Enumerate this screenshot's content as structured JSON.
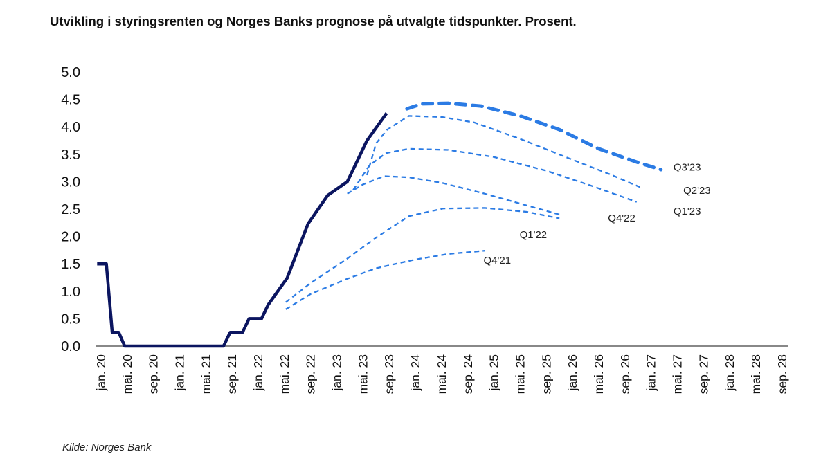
{
  "chart_data": {
    "type": "line",
    "title": "Utvikling i styringsrenten og Norges Banks prognose på utvalgte tidspunkter. Prosent.",
    "source": "Kilde: Norges Bank",
    "xlabel": "",
    "ylabel": "",
    "x_unit": "months since jan. 20",
    "ylim": [
      0,
      5
    ],
    "yticks": [
      "0.0",
      "0.5",
      "1.0",
      "1.5",
      "2.0",
      "2.5",
      "3.0",
      "3.5",
      "4.0",
      "4.5",
      "5.0"
    ],
    "xticks": [
      "jan. 20",
      "mai. 20",
      "sep. 20",
      "jan. 21",
      "mai. 21",
      "sep. 21",
      "jan. 22",
      "mai. 22",
      "sep. 22",
      "jan. 23",
      "mai. 23",
      "sep. 23",
      "jan. 24",
      "mai. 24",
      "sep. 24",
      "jan. 25",
      "mai. 25",
      "sep. 25",
      "jan. 26",
      "mai. 26",
      "sep. 26",
      "jan. 27",
      "mai. 27",
      "sep. 27",
      "jan. 28",
      "mai. 28",
      "sep. 28"
    ],
    "grid": false,
    "colors": {
      "policy": "#0b1560",
      "forecast": "#2b7be4",
      "axis": "#888888"
    },
    "series": [
      {
        "name": "Styringsrente",
        "style": "solid",
        "points": [
          [
            -0.6,
            1.5
          ],
          [
            0.8,
            1.5
          ],
          [
            1.7,
            0.25
          ],
          [
            2.7,
            0.25
          ],
          [
            3.6,
            0
          ],
          [
            18.7,
            0
          ],
          [
            19.7,
            0.25
          ],
          [
            21.6,
            0.25
          ],
          [
            22.6,
            0.5
          ],
          [
            24.5,
            0.5
          ],
          [
            25.5,
            0.75
          ],
          [
            28.4,
            1.24
          ],
          [
            31.6,
            2.23
          ],
          [
            34.6,
            2.75
          ],
          [
            37.6,
            3.0
          ],
          [
            40.6,
            3.75
          ],
          [
            43.6,
            4.25
          ]
        ]
      },
      {
        "name": "Q4'21",
        "style": "dashed",
        "points": [
          [
            28.2,
            0.67
          ],
          [
            32,
            0.95
          ],
          [
            37.4,
            1.22
          ],
          [
            42,
            1.42
          ],
          [
            48,
            1.58
          ],
          [
            53,
            1.68
          ],
          [
            58.6,
            1.74
          ]
        ]
      },
      {
        "name": "Q1'22",
        "style": "dashed",
        "points": [
          [
            28.2,
            0.8
          ],
          [
            32,
            1.15
          ],
          [
            37.4,
            1.58
          ],
          [
            42,
            1.98
          ],
          [
            47,
            2.37
          ],
          [
            52.2,
            2.51
          ],
          [
            58.6,
            2.52
          ],
          [
            65,
            2.45
          ],
          [
            70,
            2.33
          ]
        ]
      },
      {
        "name": "Q4'22",
        "style": "dashed",
        "points": [
          [
            37.6,
            2.78
          ],
          [
            40,
            2.95
          ],
          [
            43.2,
            3.1
          ],
          [
            47,
            3.08
          ],
          [
            52,
            2.98
          ],
          [
            58.6,
            2.78
          ],
          [
            64,
            2.6
          ],
          [
            70,
            2.4
          ]
        ]
      },
      {
        "name": "Q1'23",
        "style": "dashed",
        "points": [
          [
            38.5,
            2.85
          ],
          [
            41,
            3.3
          ],
          [
            43.5,
            3.52
          ],
          [
            47,
            3.6
          ],
          [
            53,
            3.58
          ],
          [
            60,
            3.45
          ],
          [
            68,
            3.2
          ],
          [
            75,
            2.92
          ],
          [
            81.8,
            2.63
          ]
        ]
      },
      {
        "name": "Q2'23",
        "style": "dashed",
        "points": [
          [
            40.6,
            3.12
          ],
          [
            42,
            3.7
          ],
          [
            43.7,
            3.95
          ],
          [
            47,
            4.2
          ],
          [
            52,
            4.18
          ],
          [
            57,
            4.08
          ],
          [
            64,
            3.78
          ],
          [
            72,
            3.4
          ],
          [
            78,
            3.12
          ],
          [
            82.3,
            2.9
          ]
        ]
      },
      {
        "name": "Q3'23",
        "style": "dashed-thick",
        "points": [
          [
            46.7,
            4.33
          ],
          [
            49,
            4.42
          ],
          [
            53,
            4.43
          ],
          [
            58,
            4.38
          ],
          [
            64,
            4.2
          ],
          [
            70,
            3.95
          ],
          [
            76,
            3.6
          ],
          [
            82,
            3.35
          ],
          [
            85.5,
            3.22
          ]
        ]
      }
    ],
    "series_labels": [
      {
        "name": "Q3'23",
        "at": [
          89.5,
          3.2
        ]
      },
      {
        "name": "Q2'23",
        "at": [
          91,
          2.78
        ]
      },
      {
        "name": "Q1'23",
        "at": [
          89.5,
          2.4
        ]
      },
      {
        "name": "Q4'22",
        "at": [
          79.5,
          2.27
        ]
      },
      {
        "name": "Q1'22",
        "at": [
          66,
          1.97
        ]
      },
      {
        "name": "Q4'21",
        "at": [
          60.5,
          1.5
        ]
      }
    ]
  }
}
